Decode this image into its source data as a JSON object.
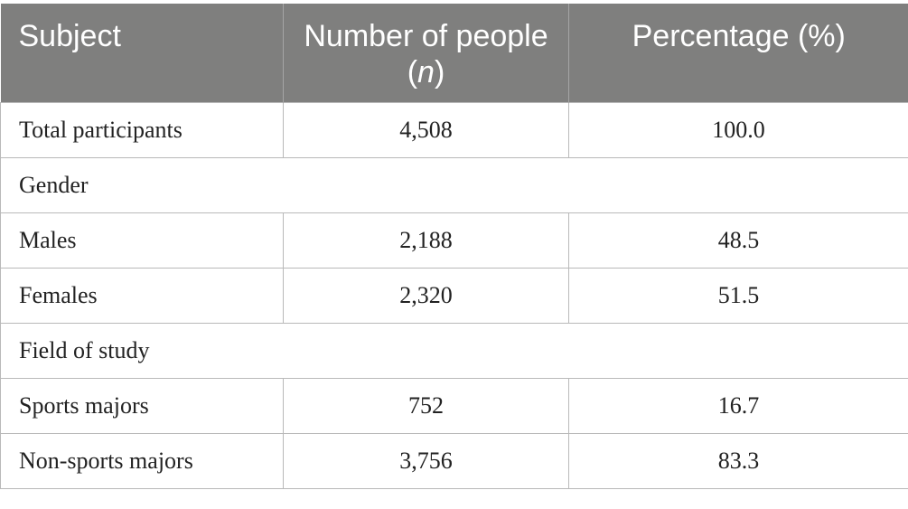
{
  "table": {
    "header": [
      "Subject",
      {
        "parts": [
          "Number of people (",
          "n",
          ")"
        ]
      },
      "Percentage (%)"
    ],
    "rows": [
      [
        "Total participants",
        "4,508",
        "100.0"
      ],
      [
        "Gender"
      ],
      [
        "Males",
        "2,188",
        "48.5"
      ],
      [
        "Females",
        "2,320",
        "51.5"
      ],
      [
        "Field of study"
      ],
      [
        "Sports majors",
        "752",
        "16.7"
      ],
      [
        "Non-sports majors",
        "3,756",
        "83.3"
      ]
    ]
  }
}
